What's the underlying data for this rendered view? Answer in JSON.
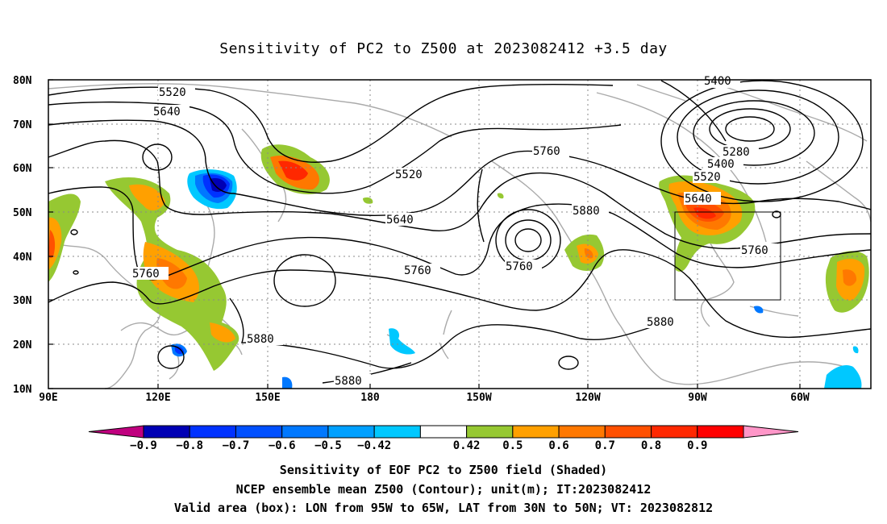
{
  "title": "Sensitivity of PC2 to Z500 at 2023082412 +3.5 day",
  "map": {
    "lat_labels": [
      "80N",
      "70N",
      "60N",
      "50N",
      "40N",
      "30N",
      "20N",
      "10N"
    ],
    "lon_labels": [
      "90E",
      "120E",
      "150E",
      "180",
      "150W",
      "120W",
      "90W",
      "60W"
    ],
    "contour_labels": [
      "5400",
      "5520",
      "5640",
      "5280",
      "5400",
      "5520",
      "5640",
      "5760",
      "5520",
      "5640",
      "5760",
      "5760",
      "5760",
      "5880",
      "5880",
      "5880",
      "5880",
      "5760"
    ],
    "box_label_text": ""
  },
  "colorbar": {
    "colors": [
      "#c0007f",
      "#0000b4",
      "#0032ff",
      "#0050ff",
      "#0078ff",
      "#00a0ff",
      "#00c8ff",
      "#ffffff",
      "#96c832",
      "#ffa000",
      "#ff7800",
      "#ff5000",
      "#ff2800",
      "#ff0000",
      "#ff96c8"
    ],
    "labels": [
      "−0.9",
      "−0.8",
      "−0.7",
      "−0.6",
      "−0.5",
      "−0.42",
      "0.42",
      "0.5",
      "0.6",
      "0.7",
      "0.8",
      "0.9"
    ]
  },
  "captions": {
    "line1": "Sensitivity of EOF PC2 to Z500 field (Shaded)",
    "line2": "NCEP ensemble mean Z500 (Contour); unit(m); IT:2023082412",
    "line3": "Valid area (box): LON from 95W to 65W, LAT from 30N to 50N; VT: 2023082812"
  }
}
